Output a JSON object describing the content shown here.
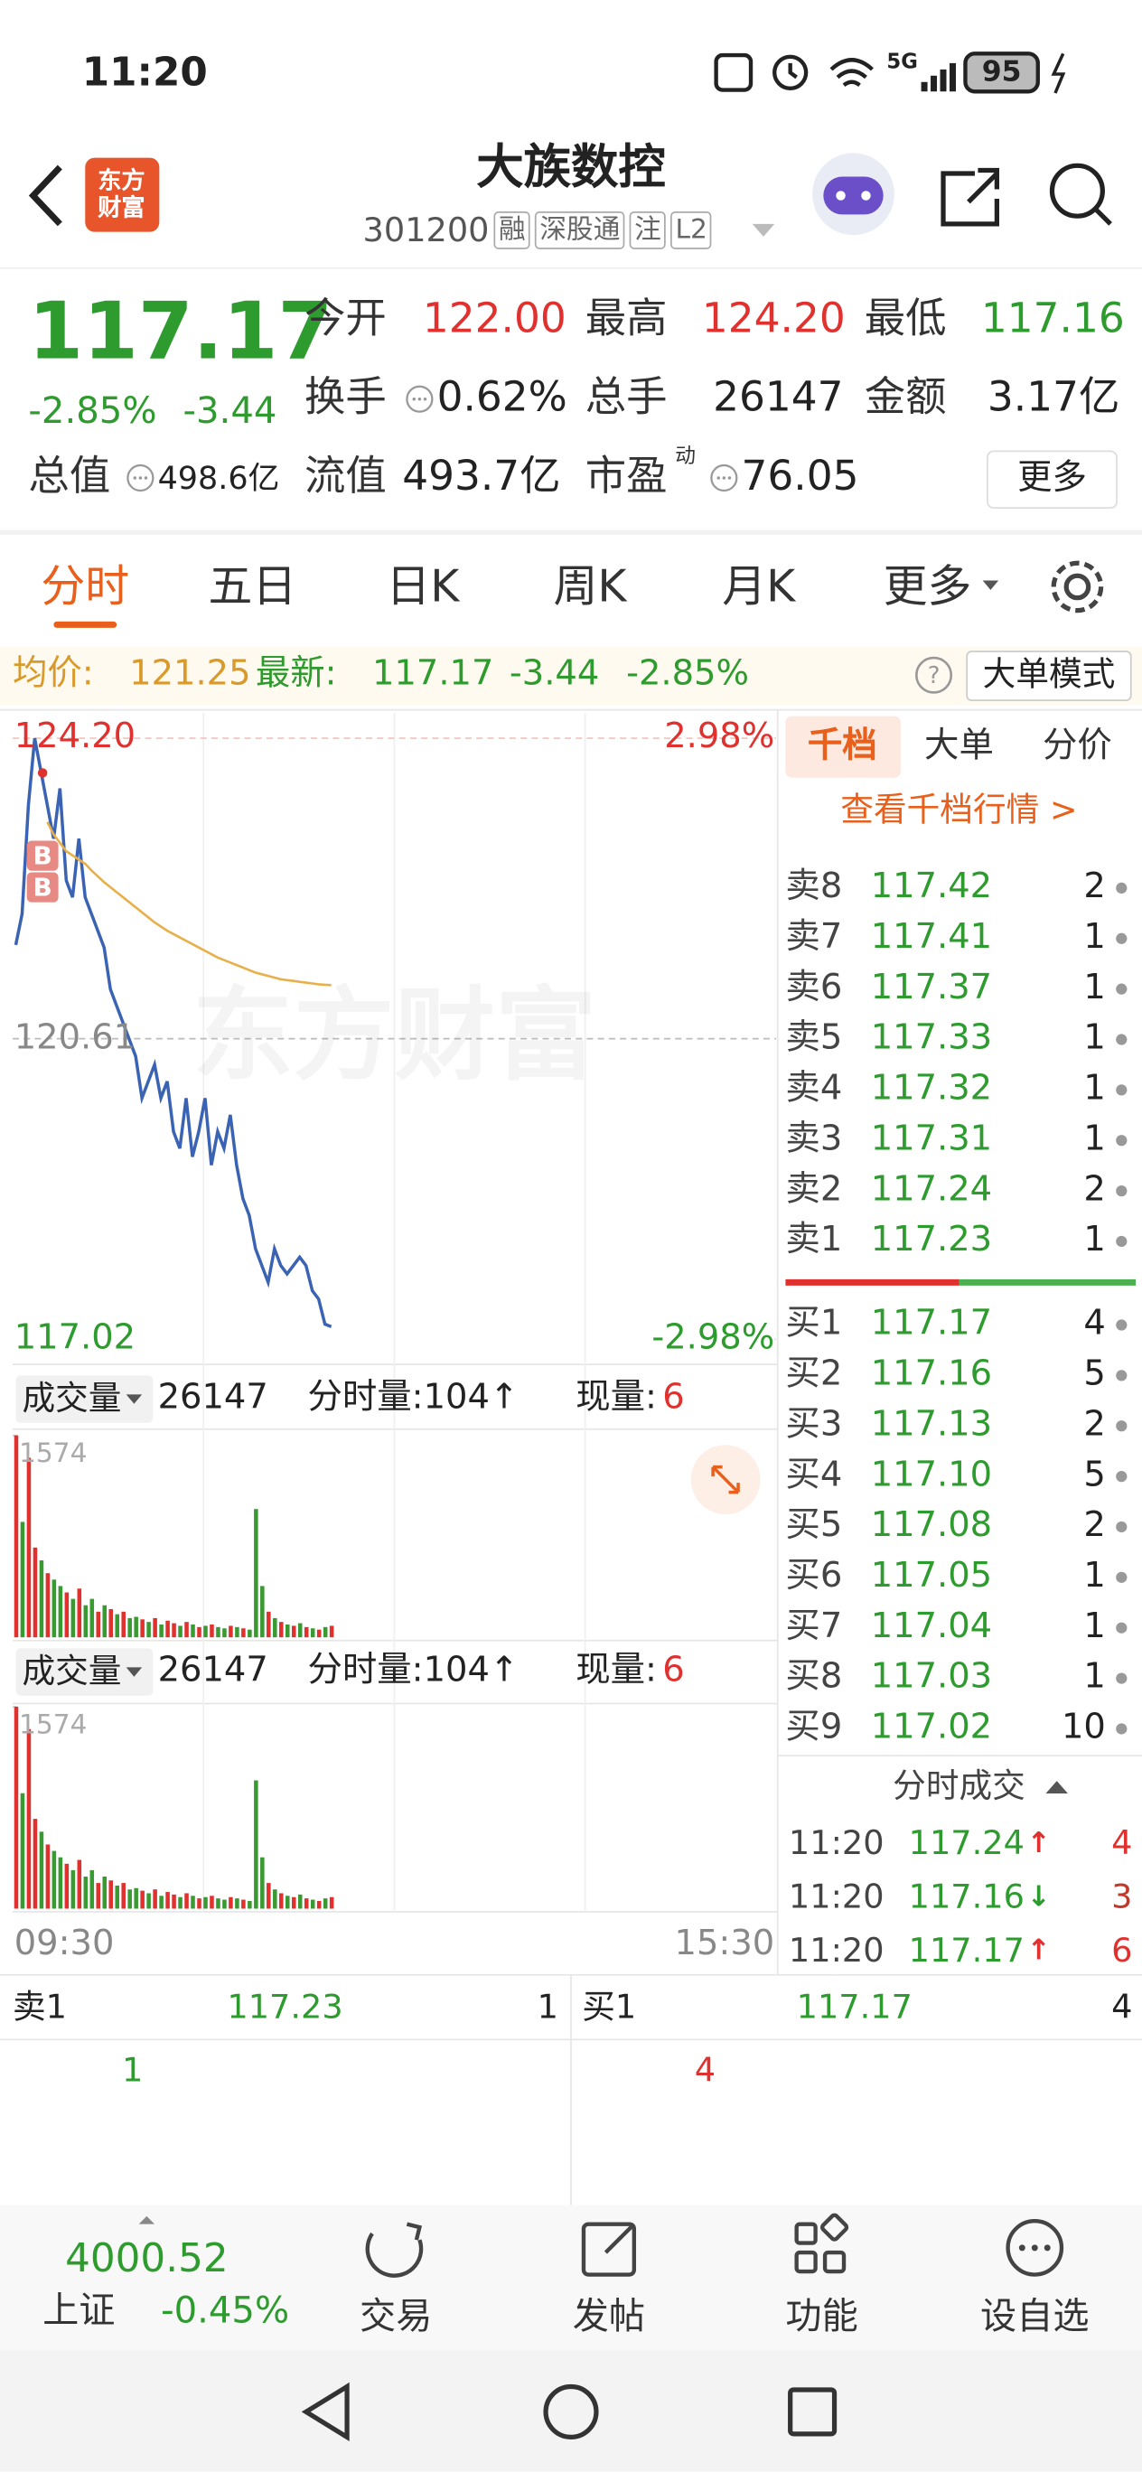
{
  "status_bar": {
    "time": "11:20",
    "network": "5G",
    "battery": "95"
  },
  "header": {
    "logo": "东方财富",
    "title": "大族数控",
    "code": "301200",
    "tags": [
      "融",
      "深股通",
      "注",
      "L2"
    ]
  },
  "quote": {
    "price": "117.17",
    "change_pct": "-2.85%",
    "change": "-3.44",
    "fields": [
      {
        "label": "今开",
        "value": "122.00",
        "color": "#e0312e"
      },
      {
        "label": "最高",
        "value": "124.20",
        "color": "#e0312e"
      },
      {
        "label": "最低",
        "value": "117.16",
        "color": "#2d9b2d"
      },
      {
        "label": "换手",
        "value": "0.62%",
        "color": "#222222",
        "icon": true
      },
      {
        "label": "总手",
        "value": "26147",
        "color": "#222222"
      },
      {
        "label": "金额",
        "value": "3.17亿",
        "color": "#222222"
      },
      {
        "label": "总值",
        "value": "498.6亿",
        "color": "#222222",
        "icon": true
      },
      {
        "label": "流值",
        "value": "493.7亿",
        "color": "#222222"
      },
      {
        "label": "市盈",
        "sup": "动",
        "value": "76.05",
        "color": "#222222",
        "icon": true
      }
    ],
    "more": "更多"
  },
  "tabs": {
    "items": [
      "分时",
      "五日",
      "日K",
      "周K",
      "月K",
      "更多"
    ],
    "active": 0
  },
  "info_bar": {
    "avg_label": "均价:",
    "avg": "121.25",
    "latest_label": "最新:",
    "latest": "117.17",
    "change": "-3.44",
    "change_pct": "-2.85%",
    "help": "?",
    "mode": "大单模式"
  },
  "chart_data": {
    "type": "line",
    "ylim": [
      117.02,
      124.2
    ],
    "yticks": [
      {
        "value": 124.2,
        "label": "124.20"
      },
      {
        "value": 120.61,
        "label": "120.61"
      },
      {
        "value": 117.02,
        "label": "117.02"
      }
    ],
    "y2lim": [
      -2.98,
      2.98
    ],
    "y2ticks": [
      {
        "value": 2.98,
        "label": "2.98%"
      },
      {
        "value": -2.98,
        "label": "-2.98%"
      }
    ],
    "x_labels": [
      "09:30",
      "15:30"
    ],
    "watermark": "东方财富",
    "annotations": [
      "B",
      "B"
    ],
    "series": [
      {
        "color": "#3b63b3",
        "values": [
          121.73,
          122.1,
          123.4,
          124.2,
          123.8,
          123.4,
          123.0,
          123.6,
          122.5,
          122.3,
          123.0,
          122.3,
          122.1,
          121.9,
          121.7,
          121.2,
          121.0,
          120.8,
          120.6,
          120.4,
          119.9,
          120.1,
          120.3,
          119.9,
          120.1,
          119.5,
          119.3,
          119.9,
          119.2,
          119.5,
          119.9,
          119.1,
          119.5,
          119.3,
          119.7,
          119.1,
          118.7,
          118.5,
          118.1,
          117.9,
          117.7,
          118.1,
          117.9,
          117.8,
          117.9,
          118.0,
          117.9,
          117.6,
          117.5,
          117.2,
          117.17
        ]
      },
      {
        "color": "#e8b04a",
        "values": [
          null,
          null,
          null,
          null,
          null,
          123.2,
          123.05,
          122.95,
          122.85,
          122.8,
          122.75,
          122.7,
          122.62,
          122.55,
          122.48,
          122.42,
          122.36,
          122.3,
          122.24,
          122.18,
          122.12,
          122.06,
          122.0,
          121.95,
          121.9,
          121.86,
          121.82,
          121.78,
          121.74,
          121.7,
          121.66,
          121.62,
          121.58,
          121.55,
          121.52,
          121.49,
          121.46,
          121.43,
          121.4,
          121.38,
          121.36,
          121.34,
          121.32,
          121.31,
          121.3,
          121.29,
          121.28,
          121.27,
          121.26,
          121.255,
          121.25
        ]
      }
    ],
    "volume": {
      "ylim": [
        0,
        1574
      ],
      "yticks": [
        1574
      ],
      "values": [
        1574,
        900,
        1400,
        700,
        600,
        500,
        450,
        400,
        350,
        300,
        380,
        250,
        300,
        200,
        250,
        220,
        180,
        200,
        150,
        160,
        140,
        120,
        150,
        100,
        130,
        110,
        90,
        120,
        100,
        80,
        90,
        100,
        80,
        70,
        90,
        80,
        70,
        60,
        1000,
        400,
        200,
        150,
        120,
        100,
        90,
        110,
        80,
        70,
        60,
        80,
        90
      ],
      "colors": [
        "#e0312e",
        "#3a9a32",
        "#e0312e",
        "#e0312e",
        "#3a9a32",
        "#e0312e",
        "#3a9a32",
        "#3a9a32",
        "#e0312e",
        "#3a9a32",
        "#e0312e",
        "#3a9a32",
        "#3a9a32",
        "#e0312e",
        "#3a9a32",
        "#e0312e",
        "#3a9a32",
        "#e0312e",
        "#3a9a32",
        "#3a9a32",
        "#e0312e",
        "#3a9a32",
        "#e0312e",
        "#3a9a32",
        "#e0312e",
        "#e0312e",
        "#3a9a32",
        "#e0312e",
        "#3a9a32",
        "#e0312e",
        "#3a9a32",
        "#e0312e",
        "#3a9a32",
        "#3a9a32",
        "#e0312e",
        "#3a9a32",
        "#e0312e",
        "#3a9a32",
        "#3a9a32",
        "#3a9a32",
        "#e0312e",
        "#3a9a32",
        "#e0312e",
        "#3a9a32",
        "#e0312e",
        "#3a9a32",
        "#e0312e",
        "#3a9a32",
        "#e0312e",
        "#3a9a32",
        "#e0312e"
      ]
    }
  },
  "volume_panels": [
    {
      "label": "成交量",
      "total": "26147",
      "period": "分时量:104↑",
      "current_label": "现量:",
      "current": "6"
    },
    {
      "label": "成交量",
      "total": "26147",
      "period": "分时量:104↑",
      "current_label": "现量:",
      "current": "6"
    }
  ],
  "order_book": {
    "tabs": [
      "千档",
      "大单",
      "分价"
    ],
    "link": "查看千档行情 >",
    "asks": [
      {
        "label": "卖8",
        "price": "117.42",
        "qty": "2"
      },
      {
        "label": "卖7",
        "price": "117.41",
        "qty": "1"
      },
      {
        "label": "卖6",
        "price": "117.37",
        "qty": "1"
      },
      {
        "label": "卖5",
        "price": "117.33",
        "qty": "1"
      },
      {
        "label": "卖4",
        "price": "117.32",
        "qty": "1"
      },
      {
        "label": "卖3",
        "price": "117.31",
        "qty": "1"
      },
      {
        "label": "卖2",
        "price": "117.24",
        "qty": "2"
      },
      {
        "label": "卖1",
        "price": "117.23",
        "qty": "1"
      }
    ],
    "bids": [
      {
        "label": "买1",
        "price": "117.17",
        "qty": "4"
      },
      {
        "label": "买2",
        "price": "117.16",
        "qty": "5"
      },
      {
        "label": "买3",
        "price": "117.13",
        "qty": "2"
      },
      {
        "label": "买4",
        "price": "117.10",
        "qty": "5"
      },
      {
        "label": "买5",
        "price": "117.08",
        "qty": "2"
      },
      {
        "label": "买6",
        "price": "117.05",
        "qty": "1"
      },
      {
        "label": "买7",
        "price": "117.04",
        "qty": "1"
      },
      {
        "label": "买8",
        "price": "117.03",
        "qty": "1"
      },
      {
        "label": "买9",
        "price": "117.02",
        "qty": "10"
      }
    ]
  },
  "trades": {
    "title": "分时成交",
    "rows": [
      {
        "time": "11:20",
        "price": "117.24",
        "arrow": "↑",
        "arrow_color": "#e0312e",
        "qty": "4",
        "qty_color": "#e0312e"
      },
      {
        "time": "11:20",
        "price": "117.16",
        "arrow": "↓",
        "arrow_color": "#2d9b2d",
        "qty": "3",
        "qty_color": "#c0392b"
      },
      {
        "time": "11:20",
        "price": "117.17",
        "arrow": "↑",
        "arrow_color": "#e0312e",
        "qty": "6",
        "qty_color": "#e0312e"
      }
    ]
  },
  "level1": {
    "ask_label": "卖1",
    "ask_price": "117.23",
    "ask_qty": "1",
    "bid_label": "买1",
    "bid_price": "117.17",
    "bid_qty": "4",
    "ask_detail": "1",
    "bid_detail": "4"
  },
  "footer": {
    "index_value": "4000.52",
    "index_name": "上证",
    "index_change": "-0.45%",
    "nav": [
      "交易",
      "发帖",
      "功能",
      "设自选"
    ]
  }
}
